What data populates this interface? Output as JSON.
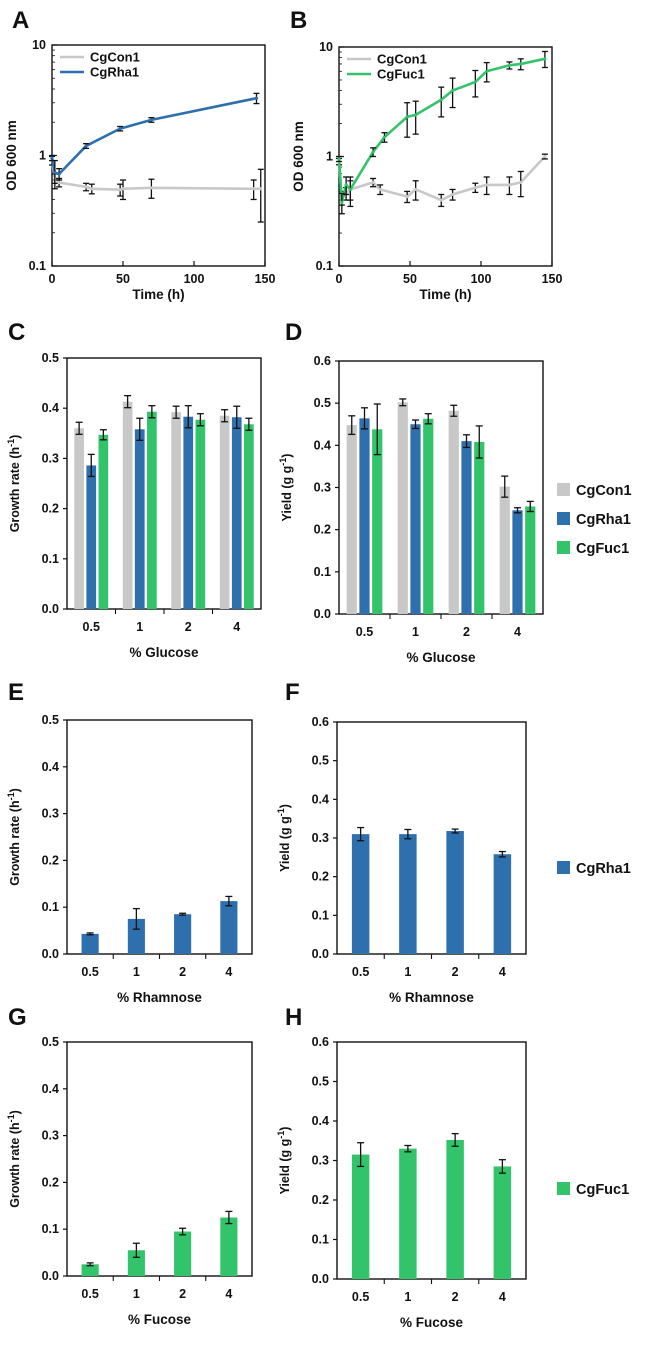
{
  "colors": {
    "CgCon1": "#c8c8c8",
    "CgRha1": "#2e6fae",
    "CgFuc1": "#33c46b",
    "error": "#111111"
  },
  "side_legends": {
    "glucose": [
      "CgCon1",
      "CgRha1",
      "CgFuc1"
    ],
    "rhamnose": [
      "CgRha1"
    ],
    "fucose": [
      "CgFuc1"
    ]
  },
  "chart_data": [
    {
      "panel": "A",
      "type": "line",
      "xlabel": "Time (h)",
      "ylabel": "OD 600 nm",
      "yscale": "log",
      "xlim": [
        0,
        150
      ],
      "ylim": [
        0.1,
        10
      ],
      "xticks": [
        0,
        50,
        100,
        150
      ],
      "yticks": [
        0.1,
        1,
        10
      ],
      "ytick_labels": [
        "0.1",
        "1",
        "10"
      ],
      "legend": "top-left",
      "series": [
        {
          "name": "CgCon1",
          "color_key": "CgCon1",
          "x": [
            0,
            2,
            5,
            24,
            28,
            48,
            50,
            70,
            142,
            147
          ],
          "y": [
            0.9,
            0.62,
            0.57,
            0.52,
            0.5,
            0.49,
            0.5,
            0.51,
            0.5,
            0.5
          ],
          "err": [
            0.08,
            0.06,
            0.05,
            0.04,
            0.05,
            0.06,
            0.1,
            0.1,
            0.1,
            0.25
          ]
        },
        {
          "name": "CgRha1",
          "color_key": "CgRha1",
          "x": [
            0,
            2,
            5,
            24,
            48,
            70,
            144
          ],
          "y": [
            0.95,
            0.7,
            0.68,
            1.22,
            1.75,
            2.1,
            3.3
          ],
          "err": [
            0.05,
            0.2,
            0.08,
            0.06,
            0.08,
            0.1,
            0.35
          ]
        }
      ]
    },
    {
      "panel": "B",
      "type": "line",
      "xlabel": "Time (h)",
      "ylabel": "OD 600 nm",
      "yscale": "log",
      "xlim": [
        0,
        150
      ],
      "ylim": [
        0.1,
        10
      ],
      "xticks": [
        0,
        50,
        100,
        150
      ],
      "yticks": [
        0.1,
        1,
        10
      ],
      "ytick_labels": [
        "0.1",
        "1",
        "10"
      ],
      "legend": "top-left",
      "series": [
        {
          "name": "CgCon1",
          "color_key": "CgCon1",
          "x": [
            0,
            2,
            5,
            8,
            24,
            29,
            48,
            54,
            72,
            80,
            96,
            104,
            120,
            128,
            145
          ],
          "y": [
            0.9,
            0.42,
            0.46,
            0.5,
            0.58,
            0.5,
            0.43,
            0.5,
            0.4,
            0.45,
            0.52,
            0.55,
            0.55,
            0.58,
            1.0
          ],
          "err": [
            0.06,
            0.06,
            0.06,
            0.1,
            0.05,
            0.05,
            0.05,
            0.1,
            0.05,
            0.05,
            0.05,
            0.1,
            0.1,
            0.15,
            0.05
          ]
        },
        {
          "name": "CgFuc1",
          "color_key": "CgFuc1",
          "x": [
            0,
            2,
            5,
            8,
            24,
            32,
            48,
            54,
            72,
            80,
            96,
            104,
            120,
            128,
            145
          ],
          "y": [
            0.95,
            0.38,
            0.55,
            0.5,
            1.1,
            1.5,
            2.3,
            2.4,
            3.3,
            4.0,
            4.8,
            6.0,
            6.8,
            7.0,
            7.8
          ],
          "err": [
            0.05,
            0.08,
            0.1,
            0.15,
            0.1,
            0.15,
            0.8,
            0.8,
            1.0,
            1.2,
            1.3,
            1.2,
            0.5,
            0.8,
            1.3
          ]
        }
      ]
    },
    {
      "panel": "C",
      "type": "bar",
      "xlabel": "% Glucose",
      "ylabel": "Growth rate (h",
      "ylabel_sup": "-1",
      "ylabel_close": ")",
      "ylim": [
        0,
        0.5
      ],
      "yticks": [
        "0.0",
        "0.1",
        "0.2",
        "0.3",
        "0.4",
        "0.5"
      ],
      "categories": [
        "0.5",
        "1",
        "2",
        "4"
      ],
      "series": [
        {
          "name": "CgCon1",
          "color_key": "CgCon1",
          "values": [
            0.36,
            0.413,
            0.392,
            0.385
          ],
          "err": [
            0.012,
            0.012,
            0.012,
            0.012
          ]
        },
        {
          "name": "CgRha1",
          "color_key": "CgRha1",
          "values": [
            0.286,
            0.358,
            0.383,
            0.382
          ],
          "err": [
            0.022,
            0.022,
            0.022,
            0.022
          ]
        },
        {
          "name": "CgFuc1",
          "color_key": "CgFuc1",
          "values": [
            0.347,
            0.393,
            0.377,
            0.368
          ],
          "err": [
            0.01,
            0.012,
            0.012,
            0.012
          ]
        }
      ]
    },
    {
      "panel": "D",
      "type": "bar",
      "xlabel": "% Glucose",
      "ylabel": "Yield (g g",
      "ylabel_sup": "-1",
      "ylabel_close": ")",
      "ylim": [
        0,
        0.6
      ],
      "yticks": [
        "0.0",
        "0.1",
        "0.2",
        "0.3",
        "0.4",
        "0.5",
        "0.6"
      ],
      "categories": [
        "0.5",
        "1",
        "2",
        "4"
      ],
      "series": [
        {
          "name": "CgCon1",
          "color_key": "CgCon1",
          "values": [
            0.448,
            0.502,
            0.482,
            0.302
          ],
          "err": [
            0.022,
            0.008,
            0.013,
            0.025
          ]
        },
        {
          "name": "CgRha1",
          "color_key": "CgRha1",
          "values": [
            0.464,
            0.45,
            0.41,
            0.246
          ],
          "err": [
            0.025,
            0.01,
            0.015,
            0.006
          ]
        },
        {
          "name": "CgFuc1",
          "color_key": "CgFuc1",
          "values": [
            0.438,
            0.463,
            0.408,
            0.255
          ],
          "err": [
            0.06,
            0.012,
            0.038,
            0.012
          ]
        }
      ]
    },
    {
      "panel": "E",
      "type": "bar",
      "xlabel": "% Rhamnose",
      "ylabel": "Growth rate (h",
      "ylabel_sup": "-1",
      "ylabel_close": ")",
      "ylim": [
        0,
        0.5
      ],
      "yticks": [
        "0.0",
        "0.1",
        "0.2",
        "0.3",
        "0.4",
        "0.5"
      ],
      "categories": [
        "0.5",
        "1",
        "2",
        "4"
      ],
      "series": [
        {
          "name": "CgRha1",
          "color_key": "CgRha1",
          "values": [
            0.043,
            0.075,
            0.085,
            0.113
          ],
          "err": [
            0.002,
            0.022,
            0.002,
            0.01
          ]
        }
      ]
    },
    {
      "panel": "F",
      "type": "bar",
      "xlabel": "% Rhamnose",
      "ylabel": "Yield (g g",
      "ylabel_sup": "-1",
      "ylabel_close": ")",
      "ylim": [
        0,
        0.6
      ],
      "yticks": [
        "0.0",
        "0.1",
        "0.2",
        "0.3",
        "0.4",
        "0.5",
        "0.6"
      ],
      "categories": [
        "0.5",
        "1",
        "2",
        "4"
      ],
      "series": [
        {
          "name": "CgRha1",
          "color_key": "CgRha1",
          "values": [
            0.31,
            0.31,
            0.318,
            0.258
          ],
          "err": [
            0.017,
            0.012,
            0.005,
            0.007
          ]
        }
      ]
    },
    {
      "panel": "G",
      "type": "bar",
      "xlabel": "% Fucose",
      "ylabel": "Growth rate (h",
      "ylabel_sup": "-1",
      "ylabel_close": ")",
      "ylim": [
        0,
        0.5
      ],
      "yticks": [
        "0.0",
        "0.1",
        "0.2",
        "0.3",
        "0.4",
        "0.5"
      ],
      "categories": [
        "0.5",
        "1",
        "2",
        "4"
      ],
      "series": [
        {
          "name": "CgFuc1",
          "color_key": "CgFuc1",
          "values": [
            0.025,
            0.055,
            0.095,
            0.125
          ],
          "err": [
            0.003,
            0.015,
            0.007,
            0.013
          ]
        }
      ]
    },
    {
      "panel": "H",
      "type": "bar",
      "xlabel": "% Fucose",
      "ylabel": "Yield (g g",
      "ylabel_sup": "-1",
      "ylabel_close": ")",
      "ylim": [
        0,
        0.6
      ],
      "yticks": [
        "0.0",
        "0.1",
        "0.2",
        "0.3",
        "0.4",
        "0.5",
        "0.6"
      ],
      "categories": [
        "0.5",
        "1",
        "2",
        "4"
      ],
      "series": [
        {
          "name": "CgFuc1",
          "color_key": "CgFuc1",
          "values": [
            0.315,
            0.33,
            0.352,
            0.285
          ],
          "err": [
            0.03,
            0.008,
            0.016,
            0.017
          ]
        }
      ]
    }
  ]
}
